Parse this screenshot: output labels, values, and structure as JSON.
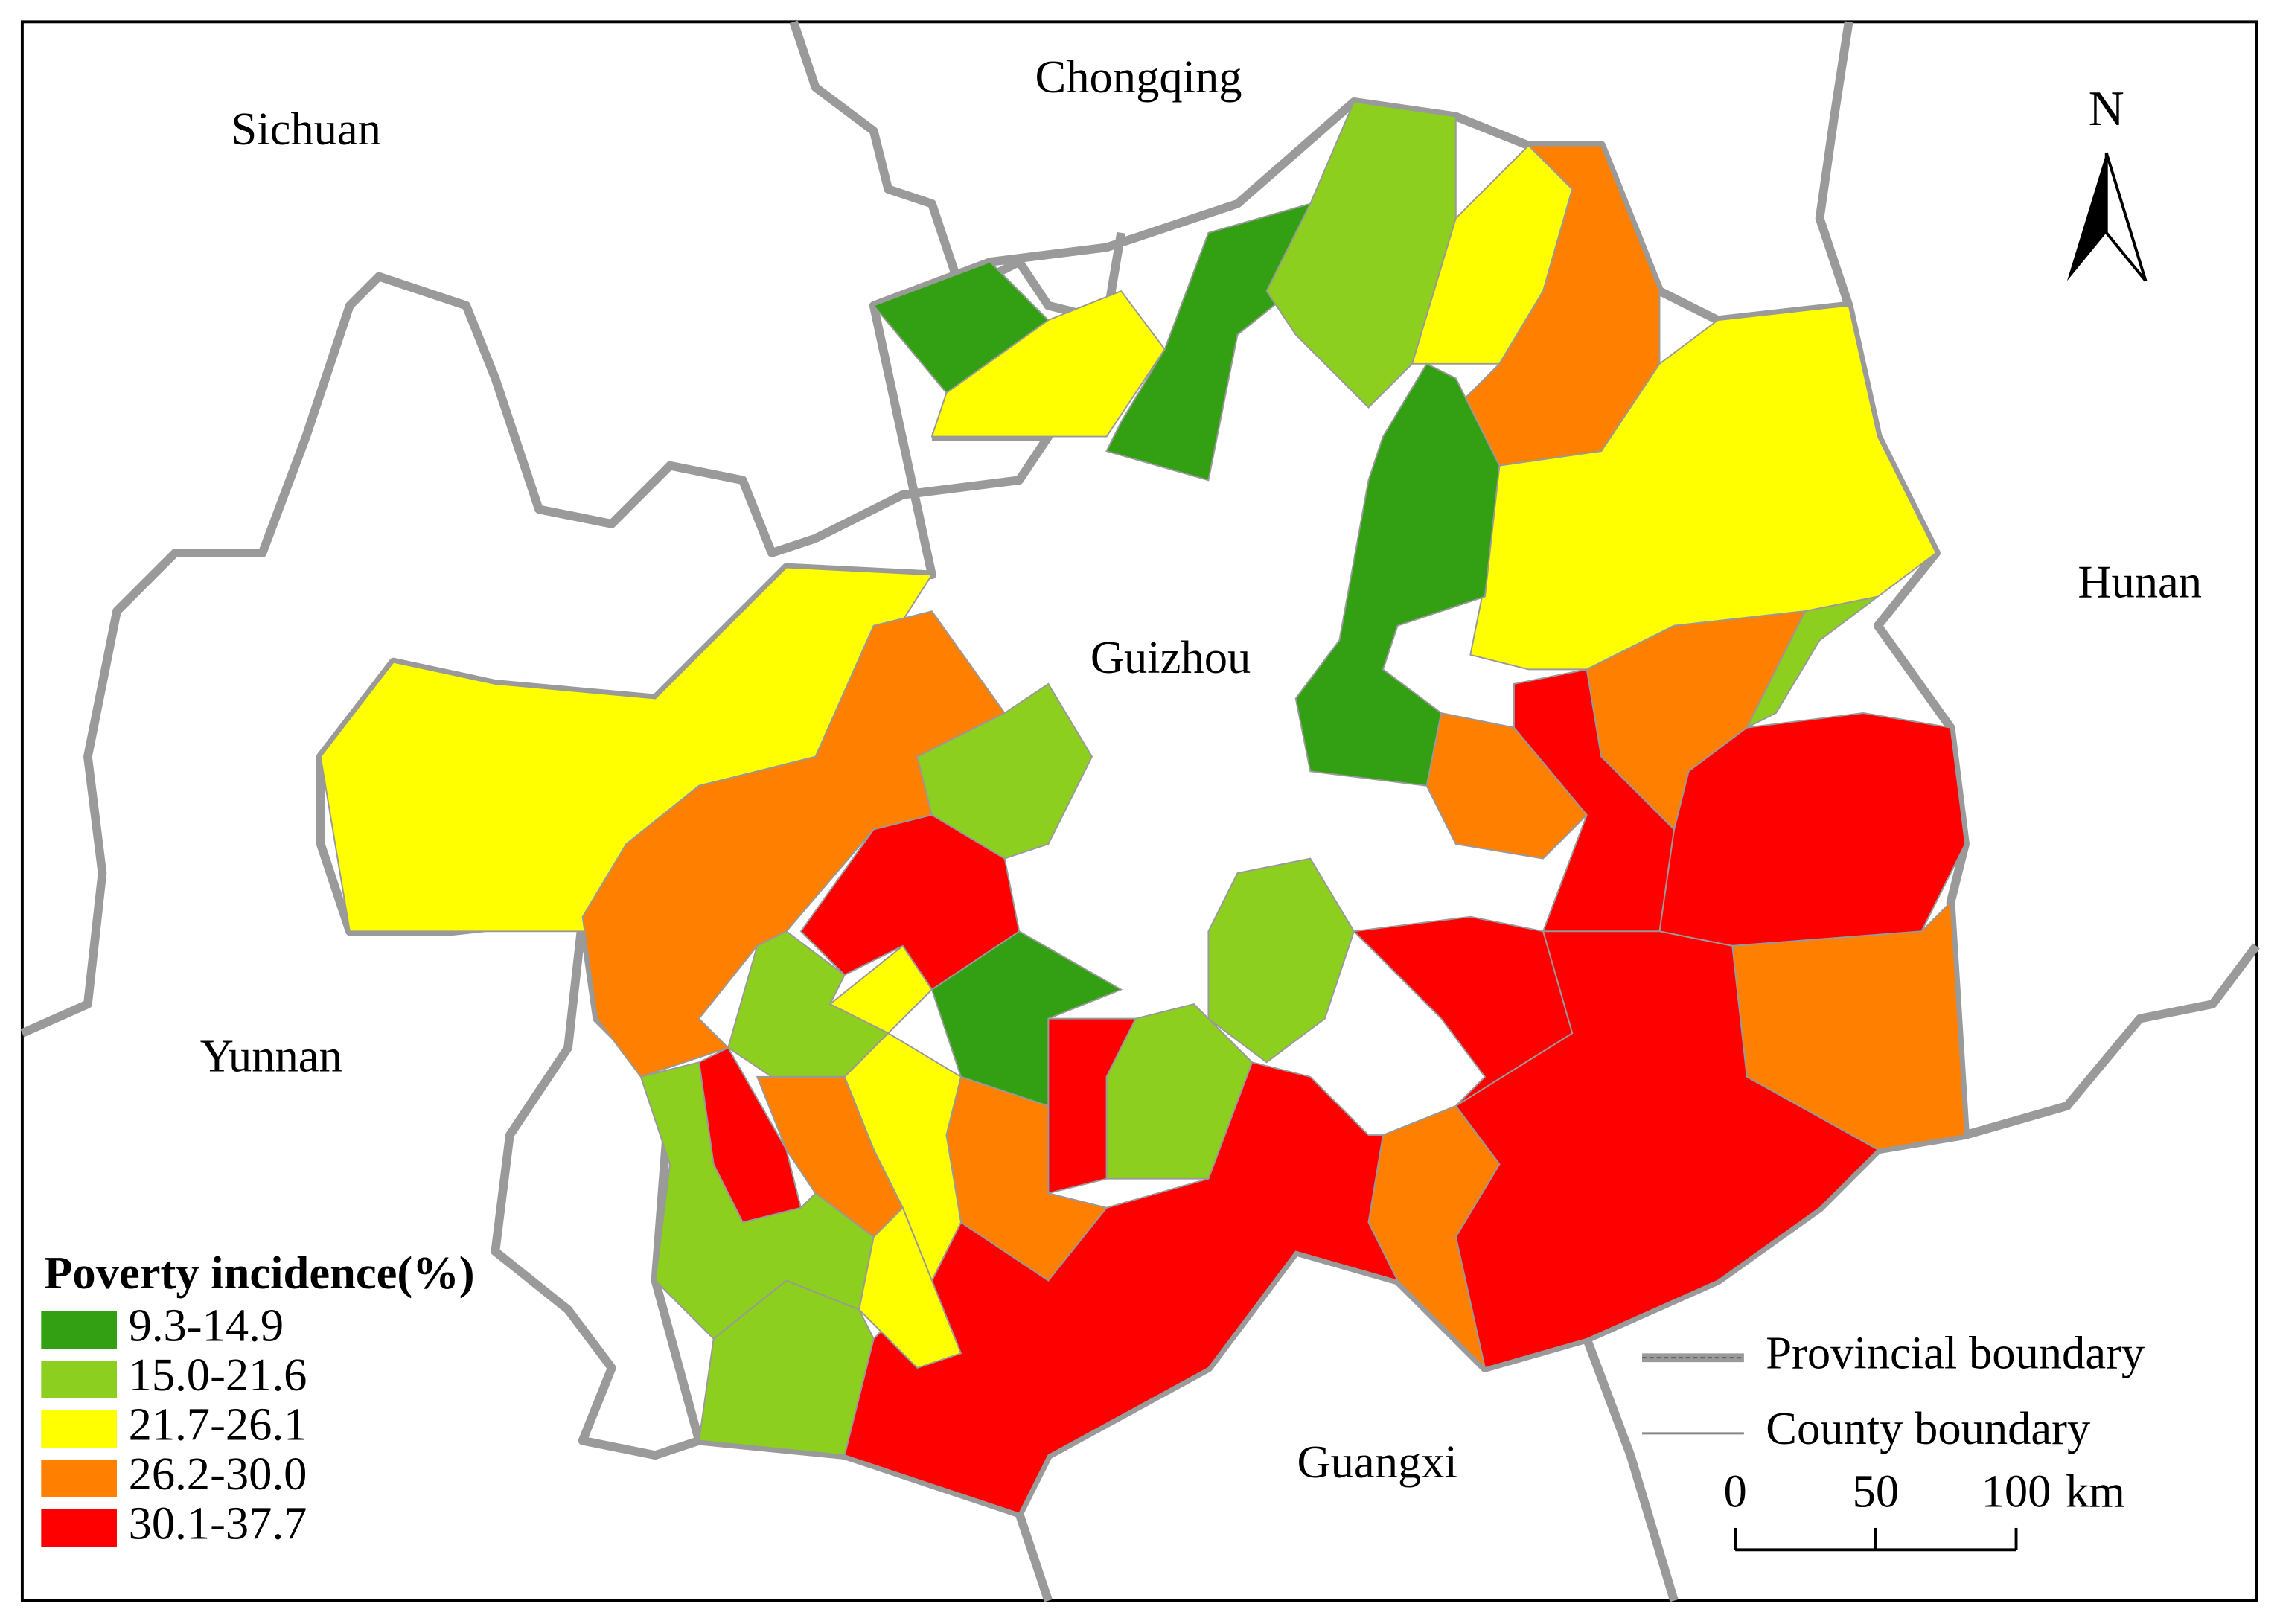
{
  "map": {
    "regions": [
      "Sichuan",
      "Chongqing",
      "Hunan",
      "Guizhou",
      "Yunnan",
      "Guangxi"
    ],
    "north": "N",
    "legend": {
      "title": "Poverty incidence(%)",
      "classes": [
        {
          "label": "9.3-14.9",
          "color": "#33a014"
        },
        {
          "label": "15.0-21.6",
          "color": "#8ccf1e"
        },
        {
          "label": "21.7-26.1",
          "color": "#ffff00"
        },
        {
          "label": "26.2-30.0",
          "color": "#ff8000"
        },
        {
          "label": "30.1-37.7",
          "color": "#ff0000"
        }
      ]
    },
    "boundaries": [
      "Provincial boundary",
      "County boundary"
    ],
    "scale_bar": {
      "ticks": [
        0,
        50,
        100
      ],
      "unit": "km"
    }
  }
}
